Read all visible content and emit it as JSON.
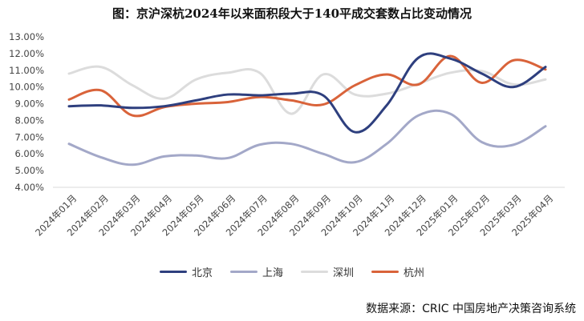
{
  "chart_data": {
    "type": "line",
    "title": "图：京沪深杭2024年以来面积段大于140平成交套数占比变动情况",
    "xlabel": "",
    "ylabel": "",
    "ylim": [
      4,
      13
    ],
    "yticks": [
      4,
      5,
      6,
      7,
      8,
      9,
      10,
      11,
      12,
      13
    ],
    "ytick_labels": [
      "4.00%",
      "5.00%",
      "6.00%",
      "7.00%",
      "8.00%",
      "9.00%",
      "10.00%",
      "11.00%",
      "12.00%",
      "13.00%"
    ],
    "categories": [
      "2024年01月",
      "2024年02月",
      "2024年03月",
      "2024年04月",
      "2024年05月",
      "2024年06月",
      "2024年07月",
      "2024年08月",
      "2024年09月",
      "2024年10月",
      "2024年11月",
      "2024年12月",
      "2025年01月",
      "2025年02月",
      "2025年03月",
      "2025年04月"
    ],
    "series": [
      {
        "name": "北京",
        "color": "#2e3f7e",
        "values": [
          8.85,
          8.9,
          8.75,
          8.85,
          9.2,
          9.55,
          9.5,
          9.6,
          9.5,
          7.3,
          8.9,
          11.75,
          11.7,
          10.8,
          10.0,
          11.2
        ]
      },
      {
        "name": "上海",
        "color": "#a3a8c8",
        "values": [
          6.6,
          5.8,
          5.35,
          5.85,
          5.9,
          5.75,
          6.55,
          6.6,
          6.0,
          5.5,
          6.6,
          8.3,
          8.4,
          6.7,
          6.55,
          7.65
        ]
      },
      {
        "name": "深圳",
        "color": "#dcdcdc",
        "values": [
          10.8,
          11.2,
          10.1,
          9.3,
          10.45,
          10.85,
          10.85,
          8.4,
          10.75,
          9.55,
          9.6,
          10.2,
          10.85,
          10.95,
          10.15,
          10.45
        ]
      },
      {
        "name": "杭州",
        "color": "#d9633a",
        "values": [
          9.25,
          9.8,
          8.3,
          8.8,
          9.0,
          9.1,
          9.4,
          9.2,
          8.95,
          10.1,
          10.75,
          10.15,
          11.85,
          10.25,
          11.6,
          11.05
        ]
      }
    ],
    "source": "数据来源：CRIC 中国房地产决策咨询系统",
    "legend_position": "bottom"
  }
}
